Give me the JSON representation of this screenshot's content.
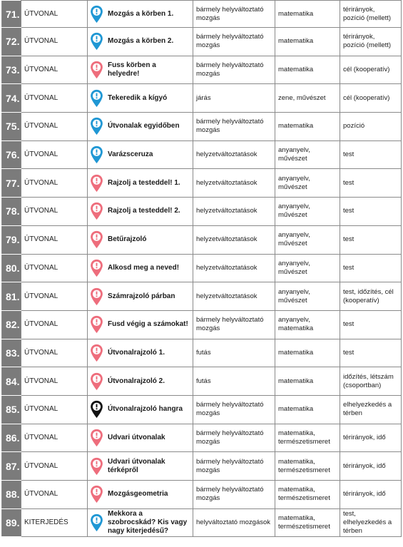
{
  "colors": {
    "blue": "#1f97d4",
    "pink": "#ee6d7c",
    "black": "#111111",
    "num_bg": "#7b7b7b"
  },
  "rows": [
    {
      "num": "71.",
      "category": "ÚTVONAL",
      "icon": "blue",
      "title": "Mozgás a körben 1.",
      "col3": "bármely helyváltoztató mozgás",
      "col4": "matematika",
      "col5": "térirányok, pozíció (mellett)"
    },
    {
      "num": "72.",
      "category": "ÚTVONAL",
      "icon": "blue",
      "title": "Mozgás a körben 2.",
      "col3": "bármely helyváltoztató mozgás",
      "col4": "matematika",
      "col5": "térirányok, pozíció (mellett)"
    },
    {
      "num": "73.",
      "category": "ÚTVONAL",
      "icon": "pink",
      "title": "Fuss körben a helyedre!",
      "col3": "bármely helyváltoztató mozgás",
      "col4": "matematika",
      "col5": "cél (kooperatív)"
    },
    {
      "num": "74.",
      "category": "ÚTVONAL",
      "icon": "blue",
      "title": "Tekeredik a kígyó",
      "col3": "járás",
      "col4": "zene, művészet",
      "col5": "cél (kooperatív)"
    },
    {
      "num": "75.",
      "category": "ÚTVONAL",
      "icon": "blue",
      "title": "Útvonalak egyidőben",
      "col3": "bármely helyváltoztató mozgás",
      "col4": "matematika",
      "col5": "pozíció"
    },
    {
      "num": "76.",
      "category": "ÚTVONAL",
      "icon": "blue",
      "title": "Varázsceruza",
      "col3": "helyzetváltoztatások",
      "col4": "anyanyelv, művészet",
      "col5": "test"
    },
    {
      "num": "77.",
      "category": "ÚTVONAL",
      "icon": "pink",
      "title": "Rajzolj a testeddel! 1.",
      "col3": "helyzetváltoztatások",
      "col4": "anyanyelv, művészet",
      "col5": "test"
    },
    {
      "num": "78.",
      "category": "ÚTVONAL",
      "icon": "pink",
      "title": "Rajzolj a testeddel! 2.",
      "col3": "helyzetváltoztatások",
      "col4": "anyanyelv, művészet",
      "col5": "test"
    },
    {
      "num": "79.",
      "category": "ÚTVONAL",
      "icon": "pink",
      "title": "Betűrajzoló",
      "col3": "helyzetváltoztatások",
      "col4": "anyanyelv, művészet",
      "col5": "test"
    },
    {
      "num": "80.",
      "category": "ÚTVONAL",
      "icon": "pink",
      "title": "Alkosd meg a neved!",
      "col3": "helyzetváltoztatások",
      "col4": "anyanyelv, művészet",
      "col5": "test"
    },
    {
      "num": "81.",
      "category": "ÚTVONAL",
      "icon": "pink",
      "title": "Számrajzoló párban",
      "col3": "helyzetváltoztatások",
      "col4": "anyanyelv, művészet",
      "col5": "test, időzítés, cél (kooperatív)"
    },
    {
      "num": "82.",
      "category": "ÚTVONAL",
      "icon": "pink",
      "title": "Fusd végig a számokat!",
      "col3": "bármely helyváltoztató mozgás",
      "col4": "anyanyelv, matematika",
      "col5": "test"
    },
    {
      "num": "83.",
      "category": "ÚTVONAL",
      "icon": "pink",
      "title": "Útvonalrajzoló 1.",
      "col3": "futás",
      "col4": "matematika",
      "col5": "test"
    },
    {
      "num": "84.",
      "category": "ÚTVONAL",
      "icon": "pink",
      "title": "Útvonalrajzoló 2.",
      "col3": "futás",
      "col4": "matematika",
      "col5": "időzítés, létszám (csoportban)"
    },
    {
      "num": "85.",
      "category": "ÚTVONAL",
      "icon": "black",
      "title": "Útvonalrajzoló hangra",
      "col3": "bármely helyváltoztató mozgás",
      "col4": "matematika",
      "col5": "elhelyezkedés a térben"
    },
    {
      "num": "86.",
      "category": "ÚTVONAL",
      "icon": "pink",
      "title": "Udvari útvonalak",
      "col3": "bármely helyváltoztató mozgás",
      "col4": "matematika, természetismeret",
      "col5": "térirányok, idő"
    },
    {
      "num": "87.",
      "category": "ÚTVONAL",
      "icon": "pink",
      "title": "Udvari útvonalak térképről",
      "col3": "bármely helyváltoztató mozgás",
      "col4": "matematika, természetismeret",
      "col5": "térirányok, idő"
    },
    {
      "num": "88.",
      "category": "ÚTVONAL",
      "icon": "pink",
      "title": "Mozgásgeometria",
      "col3": "bármely helyváltoztató mozgás",
      "col4": "matematika, természetismeret",
      "col5": "térirányok, idő"
    },
    {
      "num": "89.",
      "category": "KITERJEDÉS",
      "icon": "blue",
      "title": "Mekkora a szobrocskád? Kis vagy nagy kiterjedésű?",
      "col3": "helyváltoztató mozgások",
      "col4": "matematika, természetismeret",
      "col5": "test, elhelyezkedés a térben"
    }
  ]
}
